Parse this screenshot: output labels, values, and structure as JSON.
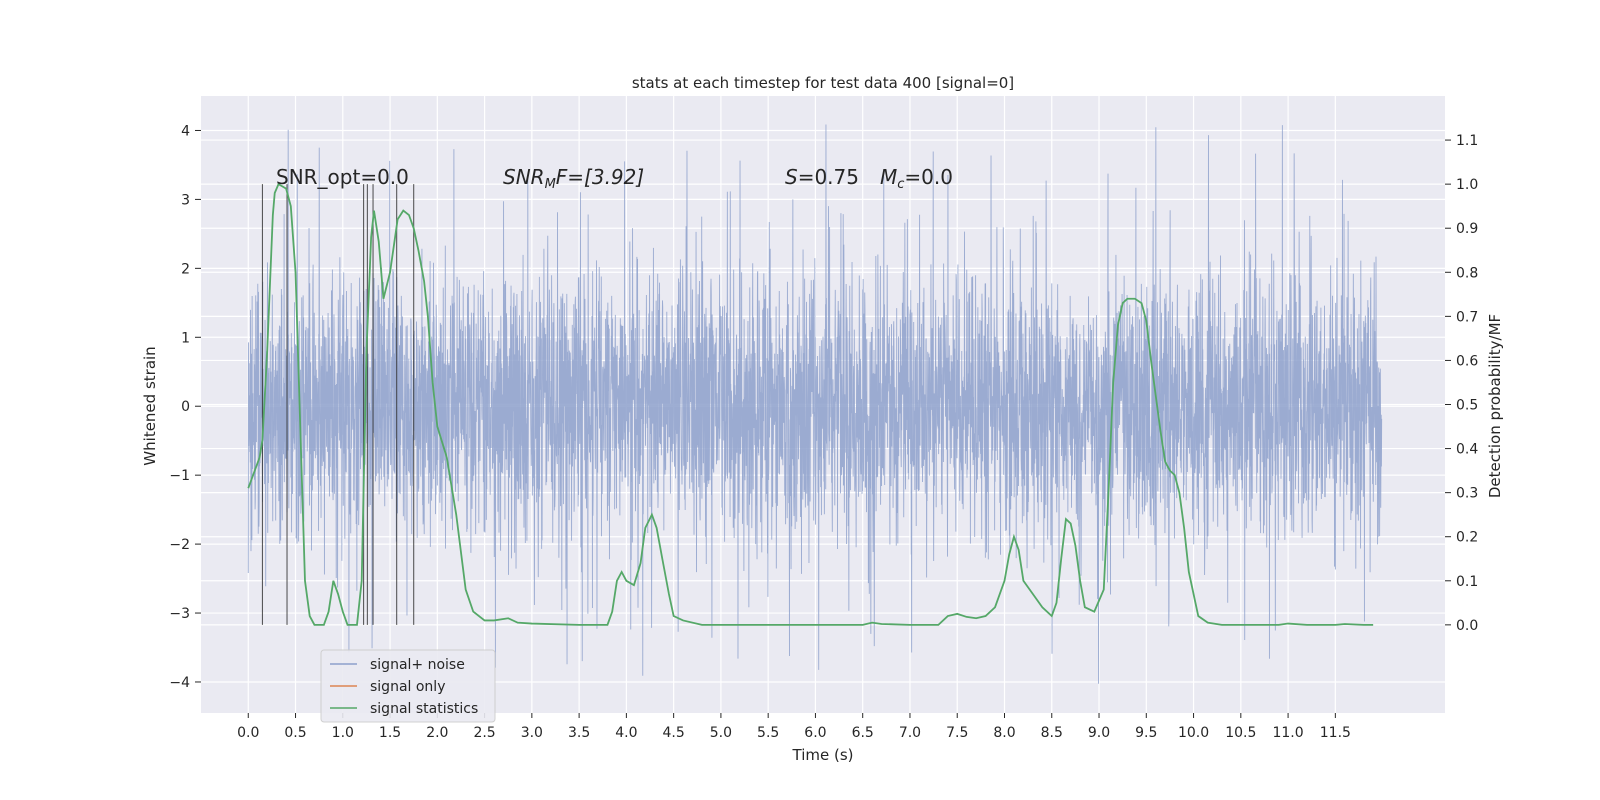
{
  "chart_data": {
    "type": "line",
    "title": "stats at each timestep for test data 400 [signal=0]",
    "xlabel": "Time (s)",
    "ylabel_left": "Whitened strain",
    "ylabel_right": "Detection probability/MF",
    "xlim": [
      -0.5,
      12.66
    ],
    "ylim_left": [
      -4.45,
      4.5
    ],
    "ylim_right": [
      -0.2,
      1.2
    ],
    "x_ticks": [
      "0.0",
      "0.5",
      "1.0",
      "1.5",
      "2.0",
      "2.5",
      "3.0",
      "3.5",
      "4.0",
      "4.5",
      "5.0",
      "5.5",
      "6.0",
      "6.5",
      "7.0",
      "7.5",
      "8.0",
      "8.5",
      "9.0",
      "9.5",
      "10.0",
      "10.5",
      "11.0",
      "11.5"
    ],
    "y_ticks_left": [
      4,
      3,
      2,
      1,
      0,
      -1,
      -2,
      -3,
      -4
    ],
    "y_ticks_right": [
      "1.1",
      "1.0",
      "0.9",
      "0.8",
      "0.7",
      "0.6",
      "0.5",
      "0.4",
      "0.3",
      "0.2",
      "0.1",
      "0.0"
    ],
    "grid": true,
    "legend_position": "bottom-left",
    "annotations": {
      "snr_opt": "SNR_opt=0.0",
      "snr_mf": "SNR",
      "snr_mf_sub": "M",
      "snr_mf_rest": "F=[3.92]",
      "s_label": "S",
      "s_value": "=0.75",
      "mc_label": "M",
      "mc_sub": "c",
      "mc_value": "=0.0"
    },
    "series": [
      {
        "name": "signal+ noise",
        "color": "#8da0cb",
        "axis": "left",
        "x_range": [
          0.0,
          11.99
        ],
        "envelope": {
          "core_amplitude": 1.3,
          "spike_max": 4.1,
          "spike_min": -4.1
        }
      },
      {
        "name": "signal only",
        "color": "#dd8452",
        "axis": "left",
        "points": []
      },
      {
        "name": "signal statistics",
        "color": "#55a868",
        "axis": "right",
        "points": [
          [
            0.0,
            0.31
          ],
          [
            0.12,
            0.38
          ],
          [
            0.15,
            0.42
          ],
          [
            0.2,
            0.62
          ],
          [
            0.26,
            0.93
          ],
          [
            0.28,
            0.98
          ],
          [
            0.32,
            1.0
          ],
          [
            0.4,
            0.99
          ],
          [
            0.45,
            0.95
          ],
          [
            0.5,
            0.8
          ],
          [
            0.55,
            0.45
          ],
          [
            0.6,
            0.1
          ],
          [
            0.65,
            0.02
          ],
          [
            0.7,
            0.0
          ],
          [
            0.8,
            0.0
          ],
          [
            0.85,
            0.03
          ],
          [
            0.9,
            0.1
          ],
          [
            0.95,
            0.07
          ],
          [
            1.0,
            0.03
          ],
          [
            1.05,
            0.0
          ],
          [
            1.15,
            0.0
          ],
          [
            1.2,
            0.1
          ],
          [
            1.25,
            0.62
          ],
          [
            1.3,
            0.88
          ],
          [
            1.33,
            0.94
          ],
          [
            1.38,
            0.87
          ],
          [
            1.43,
            0.74
          ],
          [
            1.5,
            0.8
          ],
          [
            1.58,
            0.92
          ],
          [
            1.64,
            0.94
          ],
          [
            1.7,
            0.93
          ],
          [
            1.75,
            0.9
          ],
          [
            1.8,
            0.85
          ],
          [
            1.86,
            0.78
          ],
          [
            1.9,
            0.7
          ],
          [
            1.95,
            0.55
          ],
          [
            2.0,
            0.45
          ],
          [
            2.1,
            0.38
          ],
          [
            2.2,
            0.25
          ],
          [
            2.3,
            0.08
          ],
          [
            2.38,
            0.03
          ],
          [
            2.5,
            0.01
          ],
          [
            2.6,
            0.01
          ],
          [
            2.75,
            0.015
          ],
          [
            2.85,
            0.005
          ],
          [
            3.0,
            0.003
          ],
          [
            3.5,
            0.0
          ],
          [
            3.8,
            0.0
          ],
          [
            3.85,
            0.03
          ],
          [
            3.9,
            0.1
          ],
          [
            3.95,
            0.12
          ],
          [
            4.0,
            0.1
          ],
          [
            4.08,
            0.09
          ],
          [
            4.15,
            0.14
          ],
          [
            4.2,
            0.22
          ],
          [
            4.27,
            0.25
          ],
          [
            4.32,
            0.22
          ],
          [
            4.38,
            0.15
          ],
          [
            4.45,
            0.07
          ],
          [
            4.5,
            0.02
          ],
          [
            4.6,
            0.01
          ],
          [
            4.8,
            0.0
          ],
          [
            5.5,
            0.0
          ],
          [
            6.0,
            0.0
          ],
          [
            6.5,
            0.0
          ],
          [
            6.6,
            0.005
          ],
          [
            6.7,
            0.002
          ],
          [
            7.0,
            0.0
          ],
          [
            7.3,
            0.0
          ],
          [
            7.4,
            0.02
          ],
          [
            7.5,
            0.025
          ],
          [
            7.6,
            0.018
          ],
          [
            7.7,
            0.015
          ],
          [
            7.8,
            0.02
          ],
          [
            7.9,
            0.04
          ],
          [
            8.0,
            0.1
          ],
          [
            8.05,
            0.16
          ],
          [
            8.1,
            0.2
          ],
          [
            8.15,
            0.17
          ],
          [
            8.2,
            0.1
          ],
          [
            8.3,
            0.07
          ],
          [
            8.4,
            0.04
          ],
          [
            8.5,
            0.02
          ],
          [
            8.55,
            0.05
          ],
          [
            8.6,
            0.15
          ],
          [
            8.65,
            0.24
          ],
          [
            8.7,
            0.23
          ],
          [
            8.75,
            0.18
          ],
          [
            8.8,
            0.1
          ],
          [
            8.85,
            0.04
          ],
          [
            8.95,
            0.03
          ],
          [
            9.05,
            0.08
          ],
          [
            9.1,
            0.3
          ],
          [
            9.15,
            0.55
          ],
          [
            9.2,
            0.68
          ],
          [
            9.25,
            0.73
          ],
          [
            9.3,
            0.74
          ],
          [
            9.38,
            0.74
          ],
          [
            9.45,
            0.73
          ],
          [
            9.5,
            0.69
          ],
          [
            9.55,
            0.6
          ],
          [
            9.6,
            0.52
          ],
          [
            9.65,
            0.44
          ],
          [
            9.7,
            0.37
          ],
          [
            9.75,
            0.35
          ],
          [
            9.8,
            0.34
          ],
          [
            9.85,
            0.3
          ],
          [
            9.9,
            0.22
          ],
          [
            9.95,
            0.12
          ],
          [
            10.05,
            0.02
          ],
          [
            10.15,
            0.005
          ],
          [
            10.3,
            0.0
          ],
          [
            10.9,
            0.0
          ],
          [
            11.0,
            0.003
          ],
          [
            11.2,
            0.0
          ],
          [
            11.5,
            0.0
          ],
          [
            11.6,
            0.002
          ],
          [
            11.8,
            0.0
          ],
          [
            11.9,
            0.0
          ]
        ]
      }
    ],
    "vlines": [
      0.15,
      0.41,
      1.22,
      1.26,
      1.32,
      1.57,
      1.75
    ]
  }
}
